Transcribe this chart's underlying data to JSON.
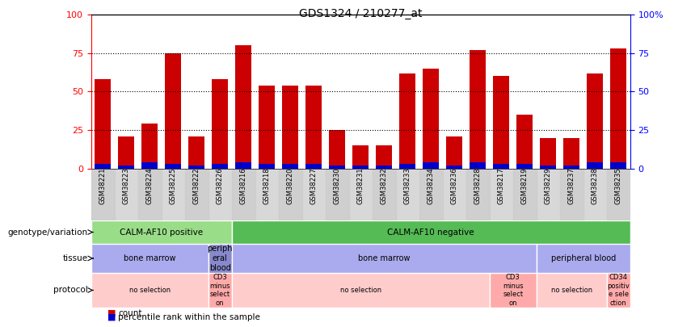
{
  "title": "GDS1324 / 210277_at",
  "samples": [
    "GSM38221",
    "GSM38223",
    "GSM38224",
    "GSM38225",
    "GSM38222",
    "GSM38226",
    "GSM38216",
    "GSM38218",
    "GSM38220",
    "GSM38227",
    "GSM38230",
    "GSM38231",
    "GSM38232",
    "GSM38233",
    "GSM38234",
    "GSM38236",
    "GSM38228",
    "GSM38217",
    "GSM38219",
    "GSM38229",
    "GSM38237",
    "GSM38238",
    "GSM38235"
  ],
  "count_values": [
    58,
    21,
    29,
    75,
    21,
    58,
    80,
    54,
    54,
    54,
    25,
    15,
    15,
    62,
    65,
    21,
    77,
    60,
    35,
    20,
    20,
    62,
    78
  ],
  "percentile_values": [
    3,
    2,
    4,
    3,
    2,
    3,
    4,
    3,
    3,
    3,
    2,
    2,
    2,
    3,
    4,
    2,
    4,
    3,
    3,
    2,
    2,
    4,
    4
  ],
  "bar_color": "#cc0000",
  "percentile_color": "#0000cc",
  "ylim": [
    0,
    100
  ],
  "yticks": [
    0,
    25,
    50,
    75,
    100
  ],
  "genotype_groups": [
    {
      "label": "CALM-AF10 positive",
      "start": 0,
      "end": 6,
      "color": "#99dd88"
    },
    {
      "label": "CALM-AF10 negative",
      "start": 6,
      "end": 23,
      "color": "#55bb55"
    }
  ],
  "tissue_groups": [
    {
      "label": "bone marrow",
      "start": 0,
      "end": 5,
      "color": "#aaaaee"
    },
    {
      "label": "periph\neral\nblood",
      "start": 5,
      "end": 6,
      "color": "#8888cc"
    },
    {
      "label": "bone marrow",
      "start": 6,
      "end": 19,
      "color": "#aaaaee"
    },
    {
      "label": "peripheral blood",
      "start": 19,
      "end": 23,
      "color": "#aaaaee"
    }
  ],
  "protocol_groups": [
    {
      "label": "no selection",
      "start": 0,
      "end": 5,
      "color": "#ffcccc"
    },
    {
      "label": "CD3\nminus\nselect\non",
      "start": 5,
      "end": 6,
      "color": "#ffaaaa"
    },
    {
      "label": "no selection",
      "start": 6,
      "end": 17,
      "color": "#ffcccc"
    },
    {
      "label": "CD3\nminus\nselect\non",
      "start": 17,
      "end": 19,
      "color": "#ffaaaa"
    },
    {
      "label": "no selection",
      "start": 19,
      "end": 22,
      "color": "#ffcccc"
    },
    {
      "label": "CD34\npositiv\ne sele\nction",
      "start": 22,
      "end": 23,
      "color": "#ffaaaa"
    }
  ],
  "row_labels": [
    "genotype/variation",
    "tissue",
    "protocol"
  ],
  "legend_items": [
    {
      "color": "#cc0000",
      "label": "count"
    },
    {
      "color": "#0000cc",
      "label": "percentile rank within the sample"
    }
  ],
  "xlabel_bg": "#d8d8d8",
  "bar_bg": "#ffffff"
}
